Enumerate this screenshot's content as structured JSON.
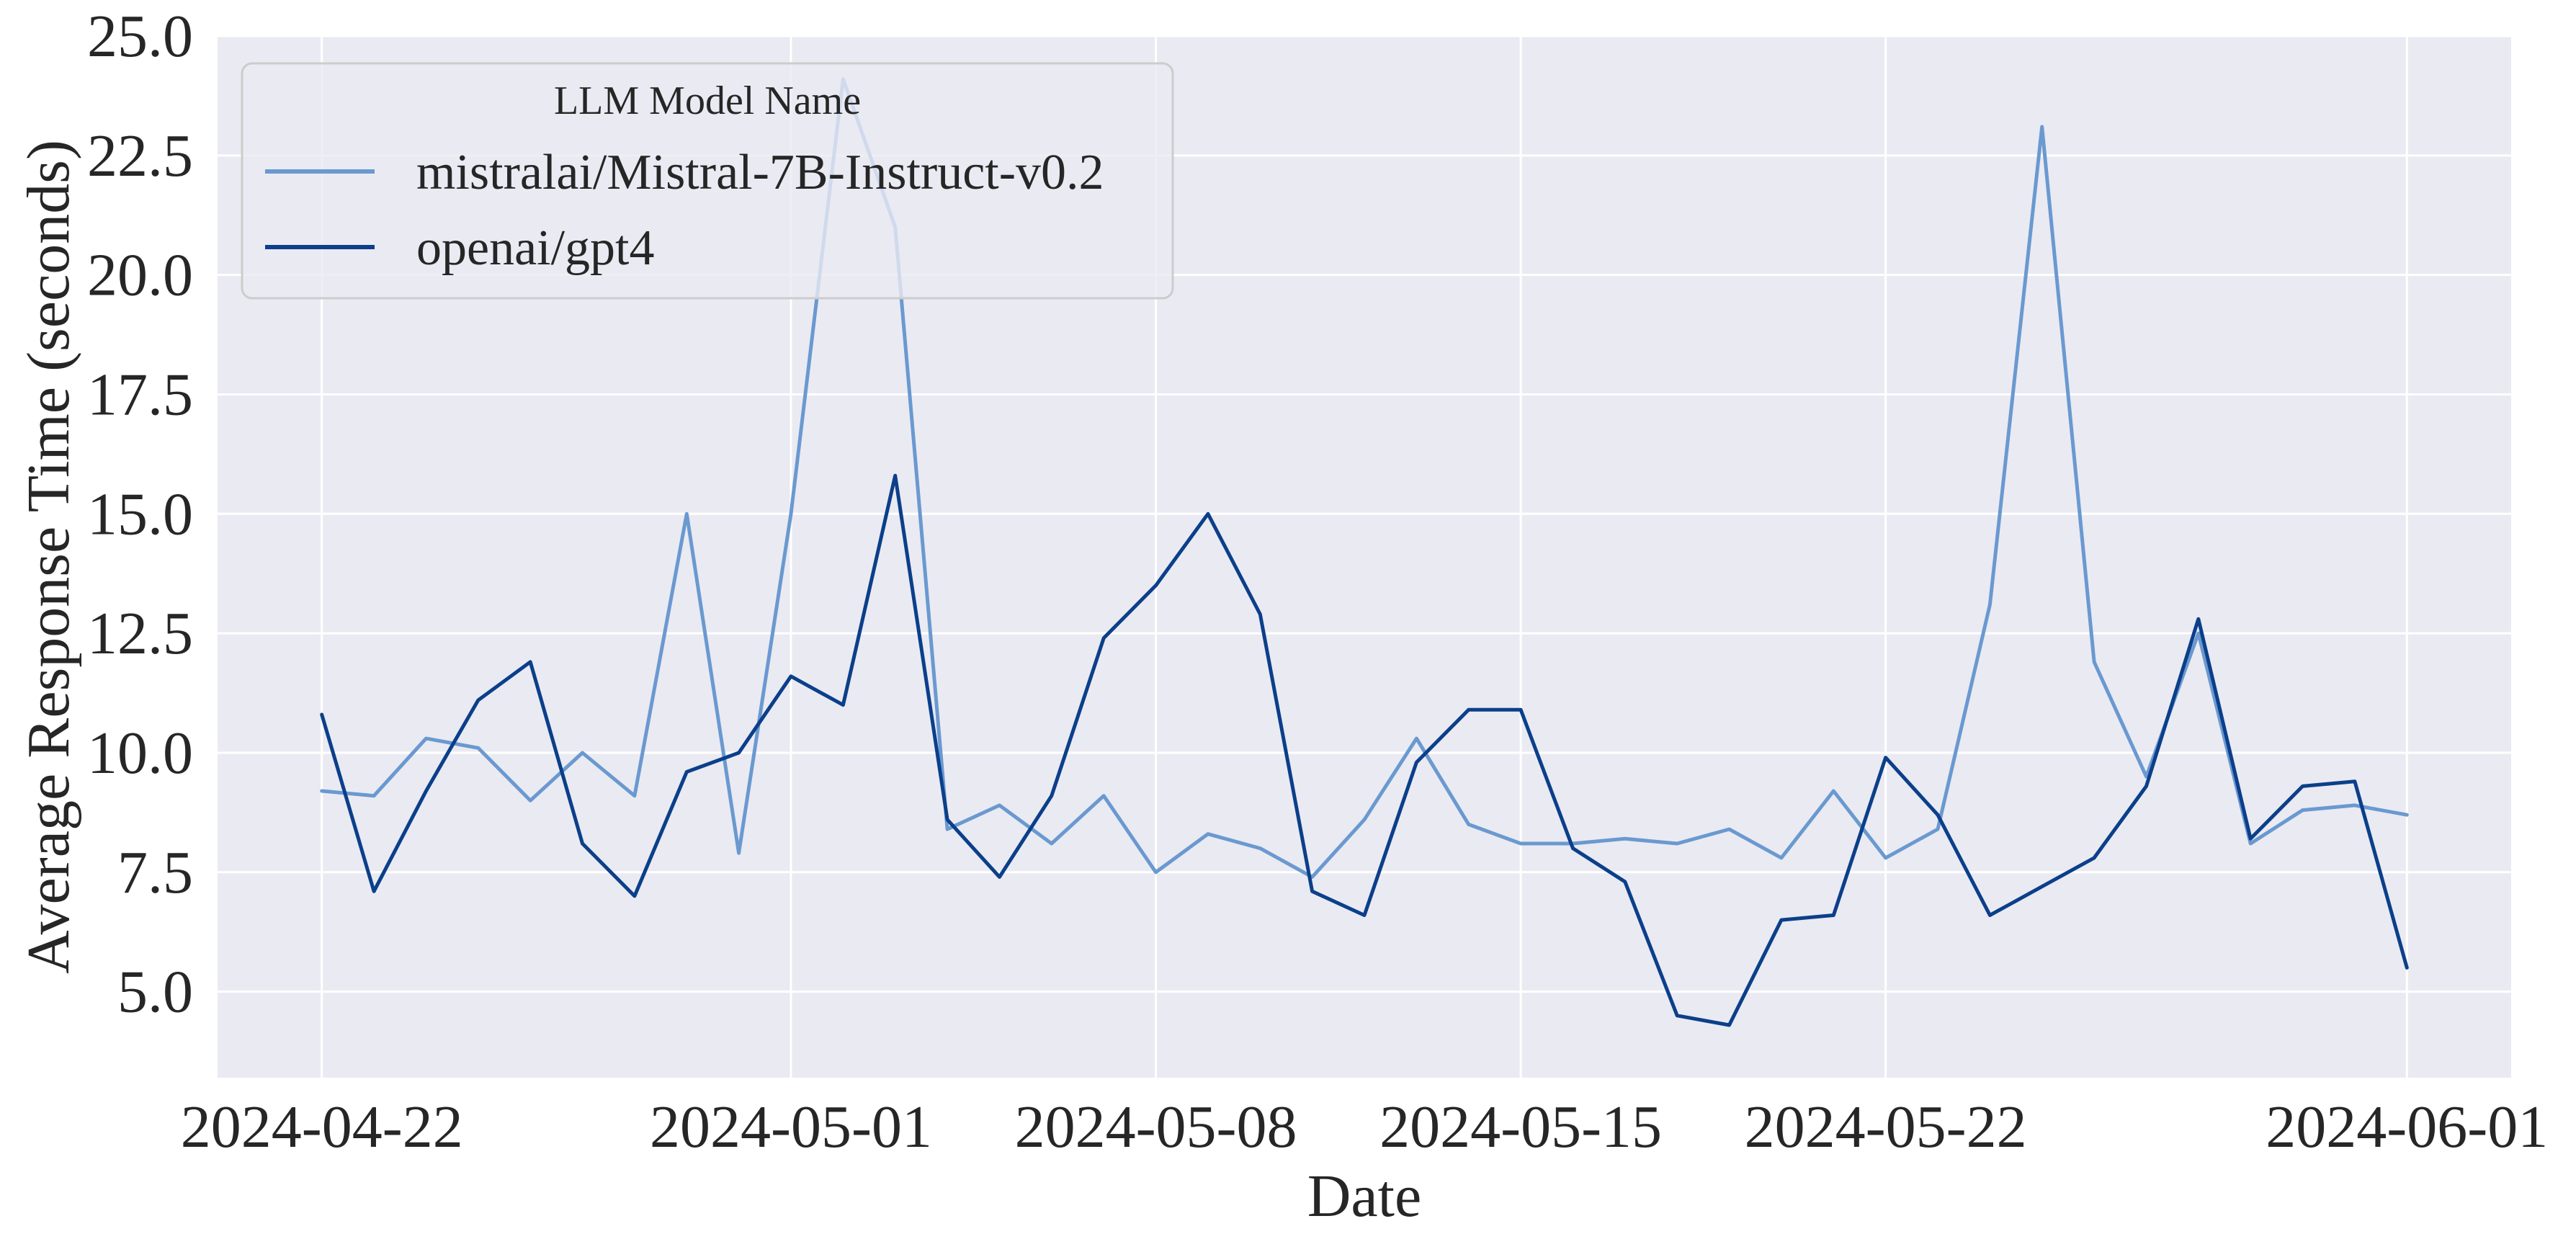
{
  "chart_data": {
    "type": "line",
    "xlabel": "Date",
    "ylabel": "Average Response Time (seconds)",
    "legend": {
      "title": "LLM Model Name",
      "placement": "top-left"
    },
    "grid": true,
    "ylim": [
      3.2,
      25.0
    ],
    "yticks": [
      "5.0",
      "7.5",
      "10.0",
      "12.5",
      "15.0",
      "17.5",
      "20.0",
      "22.5",
      "25.0"
    ],
    "xlim": [
      "2024-04-20",
      "2024-06-03"
    ],
    "xticks": [
      "2024-04-22",
      "2024-05-01",
      "2024-05-08",
      "2024-05-15",
      "2024-05-22",
      "2024-06-01"
    ],
    "x": [
      "2024-04-22",
      "2024-04-23",
      "2024-04-24",
      "2024-04-25",
      "2024-04-26",
      "2024-04-27",
      "2024-04-28",
      "2024-04-29",
      "2024-04-30",
      "2024-05-01",
      "2024-05-02",
      "2024-05-03",
      "2024-05-04",
      "2024-05-05",
      "2024-05-06",
      "2024-05-07",
      "2024-05-08",
      "2024-05-09",
      "2024-05-10",
      "2024-05-11",
      "2024-05-12",
      "2024-05-13",
      "2024-05-14",
      "2024-05-15",
      "2024-05-16",
      "2024-05-17",
      "2024-05-18",
      "2024-05-19",
      "2024-05-20",
      "2024-05-21",
      "2024-05-22",
      "2024-05-23",
      "2024-05-24",
      "2024-05-25",
      "2024-05-26",
      "2024-05-27",
      "2024-05-28",
      "2024-05-29",
      "2024-05-30",
      "2024-05-31",
      "2024-06-01"
    ],
    "series": [
      {
        "name": "mistralai/Mistral-7B-Instruct-v0.2",
        "color": "#6a99d0",
        "values": [
          9.2,
          9.1,
          10.3,
          10.1,
          9.0,
          10.0,
          9.1,
          15.0,
          7.9,
          15.0,
          24.1,
          21.0,
          8.4,
          8.9,
          8.1,
          9.1,
          7.5,
          8.3,
          8.0,
          7.4,
          8.6,
          10.3,
          8.5,
          8.1,
          8.1,
          8.2,
          8.1,
          8.4,
          7.8,
          9.2,
          7.8,
          8.4,
          13.1,
          23.1,
          11.9,
          9.5,
          12.5,
          8.1,
          8.8,
          8.9,
          8.7
        ]
      },
      {
        "name": "openai/gpt4",
        "color": "#0b3f8a",
        "values": [
          10.8,
          7.1,
          9.2,
          11.1,
          11.9,
          8.1,
          7.0,
          9.6,
          10.0,
          11.6,
          11.0,
          15.8,
          8.6,
          7.4,
          9.1,
          12.4,
          13.5,
          15.0,
          12.9,
          7.1,
          6.6,
          9.8,
          10.9,
          10.9,
          8.0,
          7.3,
          4.5,
          4.3,
          6.5,
          6.6,
          9.9,
          8.7,
          6.6,
          7.2,
          7.8,
          9.3,
          12.8,
          8.2,
          9.3,
          9.4,
          5.5
        ]
      }
    ]
  }
}
